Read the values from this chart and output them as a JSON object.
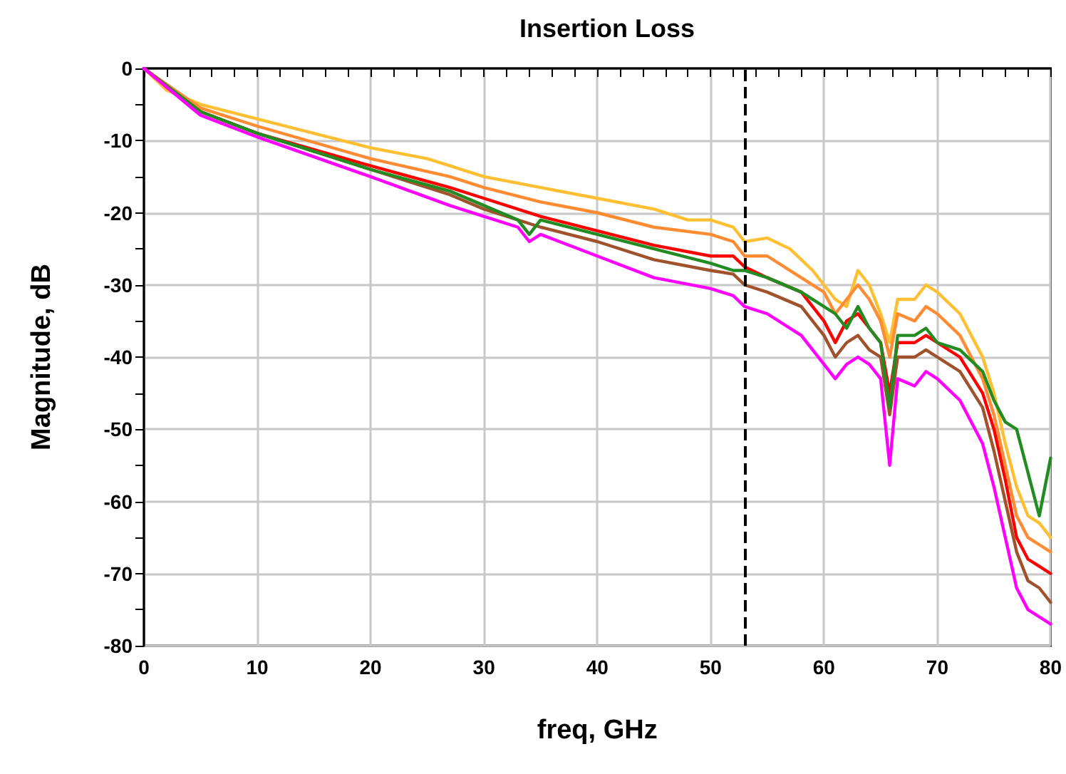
{
  "chart_data": {
    "type": "line",
    "title": "Insertion Loss",
    "xlabel": "freq, GHz",
    "ylabel": "Magnitude, dB",
    "xlim": [
      0,
      80
    ],
    "ylim": [
      -80,
      0
    ],
    "xticks": [
      0,
      {
        "value": 2,
        "label": null
      },
      {
        "value": 4,
        "label": null
      },
      {
        "value": 6,
        "label": null
      },
      {
        "value": 8,
        "label": null
      },
      10,
      {
        "value": 12,
        "label": null
      },
      {
        "value": 14,
        "label": null
      },
      {
        "value": 16,
        "label": null
      },
      {
        "value": 18,
        "label": null
      },
      20,
      {
        "value": 22,
        "label": null
      },
      {
        "value": 24,
        "label": null
      },
      {
        "value": 26,
        "label": null
      },
      {
        "value": 28,
        "label": null
      },
      30,
      {
        "value": 32,
        "label": null
      },
      {
        "value": 34,
        "label": null
      },
      {
        "value": 36,
        "label": null
      },
      {
        "value": 38,
        "label": null
      },
      40,
      {
        "value": 42,
        "label": null
      },
      {
        "value": 44,
        "label": null
      },
      {
        "value": 46,
        "label": null
      },
      {
        "value": 48,
        "label": null
      },
      50,
      {
        "value": 52,
        "label": null
      },
      {
        "value": 54,
        "label": null
      },
      {
        "value": 56,
        "label": null
      },
      {
        "value": 58,
        "label": null
      },
      60,
      {
        "value": 62,
        "label": null
      },
      {
        "value": 64,
        "label": null
      },
      {
        "value": 66,
        "label": null
      },
      {
        "value": 68,
        "label": null
      },
      70,
      {
        "value": 72,
        "label": null
      },
      {
        "value": 74,
        "label": null
      },
      {
        "value": 76,
        "label": null
      },
      {
        "value": 78,
        "label": null
      },
      80
    ],
    "yticks": [
      -80,
      {
        "value": -75,
        "label": null
      },
      -70,
      {
        "value": -65,
        "label": null
      },
      -60,
      {
        "value": -55,
        "label": null
      },
      -50,
      {
        "value": -45,
        "label": null
      },
      -40,
      {
        "value": -35,
        "label": null
      },
      -30,
      {
        "value": -25,
        "label": null
      },
      -20,
      {
        "value": -15,
        "label": null
      },
      -10,
      {
        "value": -5,
        "label": null
      },
      0
    ],
    "grid": true,
    "marker": "none",
    "line_style": "solid",
    "ref_lines": [
      {
        "axis": "x",
        "value": 53,
        "color": "#000000",
        "line_style": "dashed"
      }
    ],
    "series": [
      {
        "color": "#ffbf33",
        "x": [
          0,
          2,
          5,
          10,
          15,
          20,
          25,
          27,
          30,
          35,
          40,
          45,
          48,
          50,
          52,
          53,
          55,
          57,
          59,
          61,
          62,
          63,
          64,
          65,
          65.8,
          66.5,
          68,
          69,
          70,
          72,
          74,
          75,
          76,
          77,
          78,
          79,
          80
        ],
        "values": [
          0,
          -3,
          -5,
          -7,
          -9,
          -11,
          -12.5,
          -13.5,
          -15,
          -16.5,
          -18,
          -19.5,
          -21,
          -21,
          -22,
          -24,
          -23.5,
          -25,
          -28,
          -32,
          -33,
          -28,
          -30,
          -34,
          -38,
          -32,
          -32,
          -30,
          -31,
          -34,
          -40,
          -45,
          -52,
          -58,
          -62,
          -63,
          -65
        ]
      },
      {
        "color": "#ff8c33",
        "x": [
          0,
          5,
          10,
          20,
          27,
          30,
          35,
          40,
          45,
          50,
          52,
          53,
          55,
          58,
          60,
          61,
          62,
          63,
          64,
          65,
          65.8,
          66.5,
          68,
          69,
          70,
          72,
          74,
          75,
          76,
          77,
          78,
          79,
          80
        ],
        "values": [
          0,
          -5.5,
          -8,
          -12.5,
          -15,
          -16.5,
          -18.5,
          -20,
          -22,
          -23,
          -24,
          -26,
          -26,
          -29,
          -31,
          -34,
          -32,
          -30,
          -32,
          -35,
          -40,
          -34,
          -35,
          -33,
          -34,
          -37,
          -43,
          -48,
          -55,
          -62,
          -65,
          -66,
          -67
        ]
      },
      {
        "color": "#ff0000",
        "x": [
          0,
          5,
          10,
          20,
          27,
          30,
          35,
          40,
          45,
          50,
          52,
          53,
          55,
          58,
          60,
          61,
          62,
          63,
          64,
          65,
          65.8,
          66.5,
          68,
          69,
          70,
          72,
          74,
          75,
          76,
          77,
          78,
          79,
          80
        ],
        "values": [
          0,
          -6,
          -9,
          -13.5,
          -16.5,
          -18,
          -20.5,
          -22.5,
          -24.5,
          -26,
          -26,
          -27.5,
          -29,
          -31,
          -35,
          -38,
          -35,
          -34,
          -36,
          -38,
          -45,
          -38,
          -38,
          -37,
          -38,
          -40,
          -45,
          -50,
          -57,
          -65,
          -68,
          -69,
          -70
        ]
      },
      {
        "color": "#a0522d",
        "x": [
          0,
          5,
          10,
          20,
          27,
          30,
          35,
          40,
          45,
          50,
          52,
          53,
          55,
          58,
          60,
          61,
          62,
          63,
          64,
          65,
          65.8,
          66.5,
          68,
          69,
          70,
          72,
          74,
          75,
          76,
          77,
          78,
          79,
          80
        ],
        "values": [
          0,
          -6,
          -9,
          -14,
          -17.5,
          -19.5,
          -22,
          -24,
          -26.5,
          -28,
          -28.5,
          -30,
          -31,
          -33,
          -37,
          -40,
          -38,
          -37,
          -39,
          -40,
          -48,
          -40,
          -40,
          -39,
          -40,
          -42,
          -47,
          -53,
          -60,
          -67,
          -71,
          -72,
          -74
        ]
      },
      {
        "color": "#228b22",
        "x": [
          0,
          5,
          10,
          20,
          27,
          30,
          33,
          34,
          35,
          40,
          45,
          50,
          52,
          53,
          55,
          58,
          60,
          61,
          62,
          63,
          64,
          65,
          65.8,
          66.5,
          68,
          69,
          70,
          72,
          74,
          75,
          76,
          77,
          78,
          79,
          80
        ],
        "values": [
          0,
          -6,
          -9,
          -14,
          -17,
          -19,
          -21,
          -23,
          -21,
          -23,
          -25,
          -27,
          -28,
          -28,
          -29,
          -31,
          -33,
          -34,
          -36,
          -33,
          -36,
          -38,
          -47,
          -37,
          -37,
          -36,
          -38,
          -39,
          -42,
          -46,
          -49,
          -50,
          -56,
          -62,
          -54
        ]
      },
      {
        "color": "#ff00ff",
        "x": [
          0,
          5,
          10,
          20,
          27,
          30,
          33,
          34,
          35,
          40,
          45,
          50,
          52,
          53,
          55,
          58,
          60,
          61,
          62,
          63,
          64,
          65,
          65.8,
          66.5,
          68,
          69,
          70,
          72,
          74,
          75,
          76,
          77,
          78,
          79,
          80
        ],
        "values": [
          0,
          -6.5,
          -9.5,
          -15,
          -19,
          -20.5,
          -22,
          -24,
          -23,
          -26,
          -29,
          -30.5,
          -31.5,
          -33,
          -34,
          -37,
          -41,
          -43,
          -41,
          -40,
          -41,
          -43,
          -55,
          -43,
          -44,
          -42,
          -43,
          -46,
          -52,
          -58,
          -65,
          -72,
          -75,
          -76,
          -77
        ]
      }
    ]
  }
}
